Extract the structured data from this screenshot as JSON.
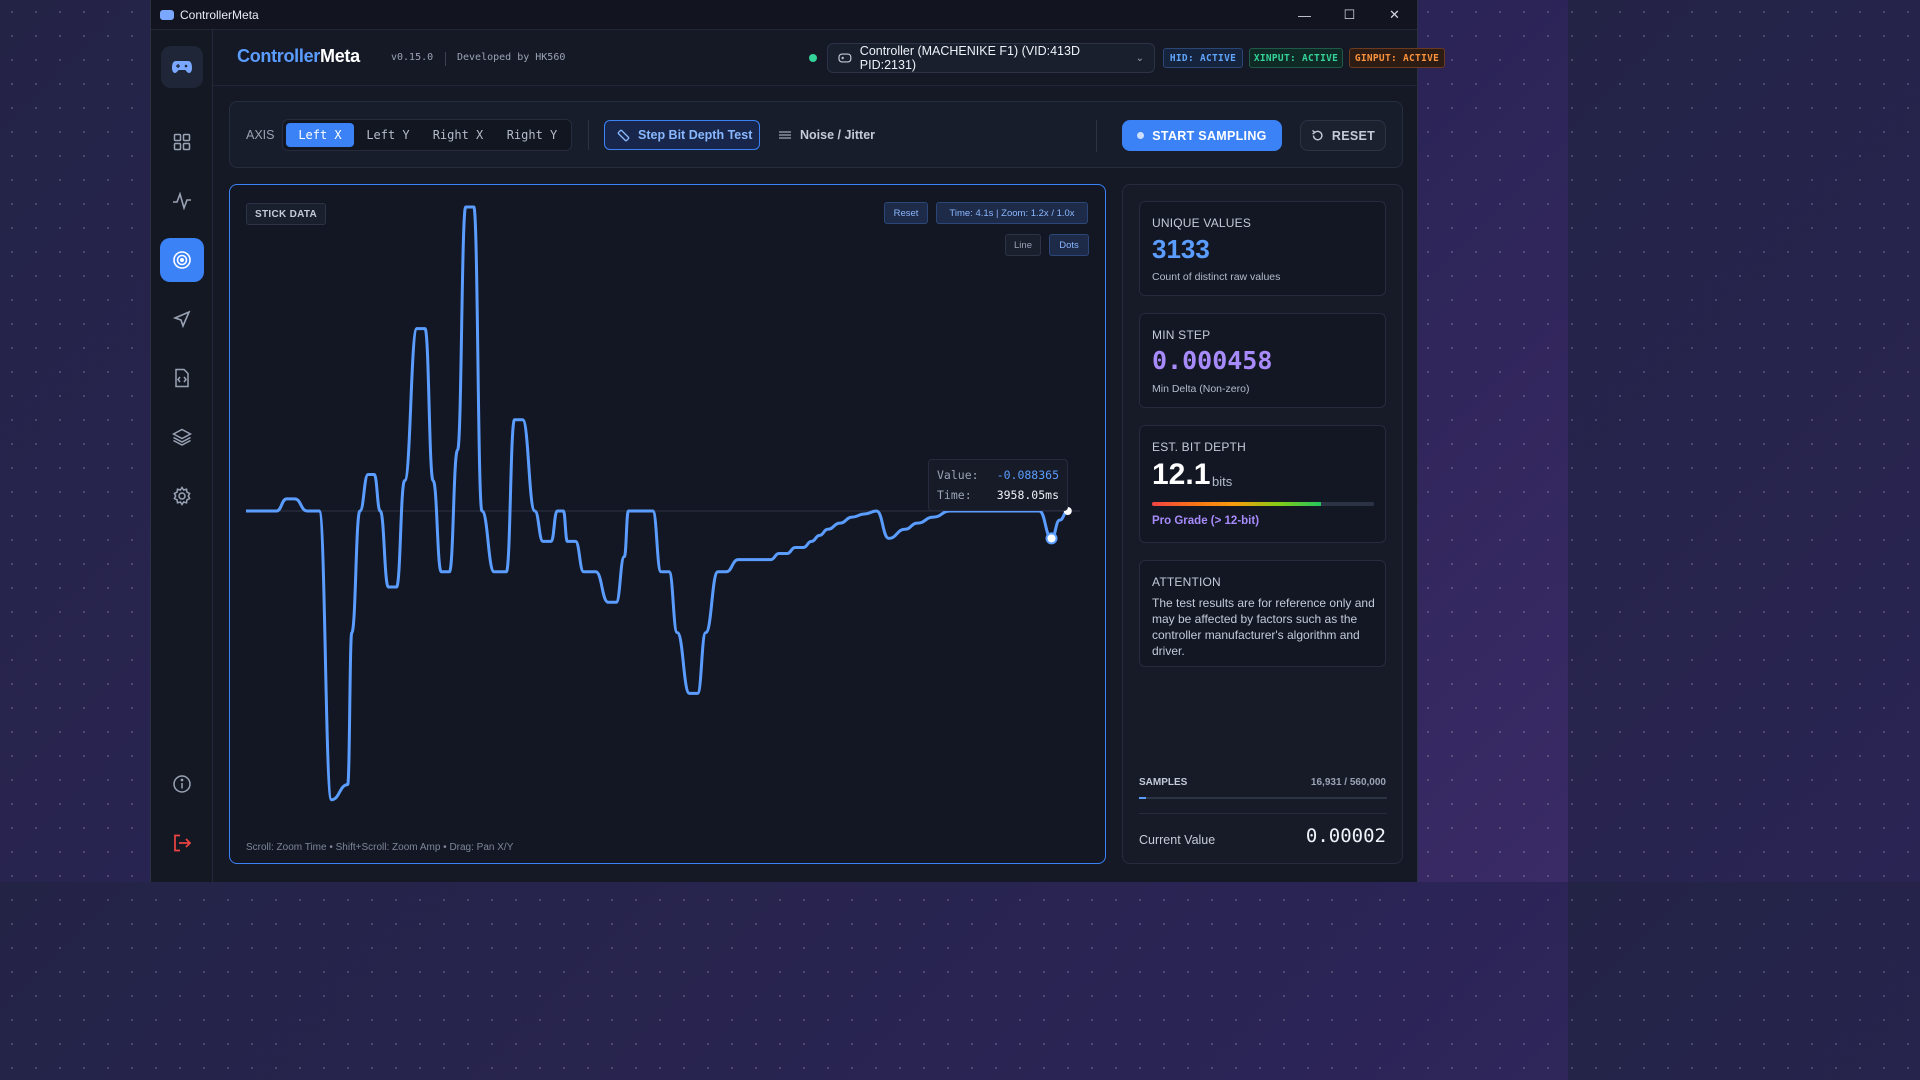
{
  "window": {
    "title": "ControllerMeta",
    "controls": [
      "—",
      "☐",
      "✕"
    ]
  },
  "header": {
    "brand_part1": "Controller",
    "brand_part2": "Meta",
    "version": "v0.15.0",
    "developer": "Developed by HK560",
    "controller": "Controller (MACHENIKE F1) (VID:413D PID:2131)",
    "badges": {
      "hid": "HID: ACTIVE",
      "xinput": "XINPUT: ACTIVE",
      "ginput": "GINPUT: ACTIVE"
    }
  },
  "sidebar": {
    "items": [
      {
        "name": "dashboard",
        "icon": "grid-icon"
      },
      {
        "name": "activity",
        "icon": "pulse-icon"
      },
      {
        "name": "stick-test",
        "icon": "target-icon",
        "active": true
      },
      {
        "name": "navigate",
        "icon": "send-icon"
      },
      {
        "name": "scripts",
        "icon": "file-code-icon"
      },
      {
        "name": "layers",
        "icon": "layers-icon"
      },
      {
        "name": "settings",
        "icon": "gear-icon"
      }
    ],
    "bottom": [
      {
        "name": "info",
        "icon": "info-icon"
      },
      {
        "name": "logout",
        "icon": "logout-icon"
      }
    ]
  },
  "toolbar": {
    "axis_label": "AXIS",
    "axis_tabs": [
      "Left X",
      "Left Y",
      "Right X",
      "Right Y"
    ],
    "active_axis": "Left X",
    "step_test": "Step Bit Depth Test",
    "noise": "Noise / Jitter",
    "start": "START SAMPLING",
    "reset": "RESET"
  },
  "chart": {
    "label": "STICK DATA",
    "reset": "Reset",
    "info": "Time: 4.1s | Zoom: 1.2x / 1.0x",
    "line_mode": "Line",
    "dots_mode": "Dots",
    "mode_selected": "Dots",
    "tooltip": {
      "value_label": "Value:",
      "value": "-0.088365",
      "time_label": "Time:",
      "time": "3958.05ms"
    },
    "hint": "Scroll: Zoom Time  •  Shift+Scroll: Zoom Amp  •  Drag: Pan X/Y",
    "colors": {
      "line": "#5b9dff",
      "accent": "#3b82f6"
    }
  },
  "chart_data": {
    "type": "line",
    "xlabel": "",
    "ylabel": "",
    "xlim": [
      0,
      4.1
    ],
    "ylim": [
      -1,
      1
    ],
    "series": [
      {
        "x": [
          0,
          0.15,
          0.2,
          0.24,
          0.3,
          0.36,
          0.42,
          0.5,
          0.52,
          0.56,
          0.6,
          0.63,
          0.66,
          0.7,
          0.74,
          0.78,
          0.84,
          0.88,
          0.92,
          0.96,
          1.0,
          1.04,
          1.08,
          1.12,
          1.16,
          1.22,
          1.28,
          1.32,
          1.36,
          1.42,
          1.46,
          1.5,
          1.53,
          1.56,
          1.58,
          1.6,
          1.62,
          1.66,
          1.72,
          1.78,
          1.82,
          1.86,
          1.88,
          1.9,
          1.94,
          2.0,
          2.04,
          2.08,
          2.12,
          2.18,
          2.22,
          2.26,
          2.32,
          2.36,
          2.42,
          2.46,
          2.5,
          2.54,
          2.58,
          2.62,
          2.66,
          2.7,
          2.74,
          2.78,
          2.82,
          2.86,
          2.92,
          2.98,
          3.04,
          3.1,
          3.16,
          3.24,
          3.3,
          3.38,
          3.46,
          3.54,
          3.6,
          3.66,
          3.72,
          3.78,
          3.84,
          3.9,
          3.96,
          4.0,
          4.04
        ],
        "y": [
          0,
          0,
          0.04,
          0.04,
          0.0,
          0.0,
          -0.95,
          -0.9,
          -0.4,
          0.0,
          0.12,
          0.12,
          0.0,
          -0.25,
          -0.25,
          0.1,
          0.6,
          0.6,
          0.1,
          -0.2,
          -0.2,
          0.2,
          1.0,
          1.0,
          0.0,
          -0.2,
          -0.2,
          0.3,
          0.3,
          0.0,
          -0.1,
          -0.1,
          0.0,
          0.0,
          -0.1,
          -0.1,
          -0.1,
          -0.2,
          -0.2,
          -0.3,
          -0.3,
          -0.15,
          0.0,
          0.0,
          0.0,
          0.0,
          -0.2,
          -0.2,
          -0.4,
          -0.6,
          -0.6,
          -0.4,
          -0.2,
          -0.2,
          -0.16,
          -0.16,
          -0.16,
          -0.16,
          -0.16,
          -0.14,
          -0.14,
          -0.12,
          -0.12,
          -0.1,
          -0.08,
          -0.06,
          -0.04,
          -0.02,
          -0.01,
          0.0,
          -0.09,
          -0.06,
          -0.04,
          -0.02,
          0.0,
          0.0,
          0.0,
          0.0,
          0.0,
          0.0,
          0.0,
          0.0,
          -0.09,
          -0.03,
          0.0
        ]
      }
    ],
    "grid": false
  },
  "stats": {
    "unique_label": "UNIQUE VALUES",
    "unique_value": "3133",
    "unique_sub": "Count of distinct raw values",
    "minstep_label": "MIN STEP",
    "minstep_value": "0.000458",
    "minstep_sub": "Min Delta (Non-zero)",
    "bitdepth_label": "EST. BIT DEPTH",
    "bitdepth_value": "12.1",
    "bitdepth_unit": "bits",
    "bitdepth_fill": 0.76,
    "bitdepth_grade": "Pro Grade (> 12-bit)",
    "attention_label": "ATTENTION",
    "attention_text": "The test results are for reference only and may be affected by factors such as the controller manufacturer's algorithm and driver.",
    "samples_label": "SAMPLES",
    "samples_count": "16,931 / 560,000",
    "samples_fill": 0.03,
    "current_label": "Current Value",
    "current_value": "0.00002"
  }
}
